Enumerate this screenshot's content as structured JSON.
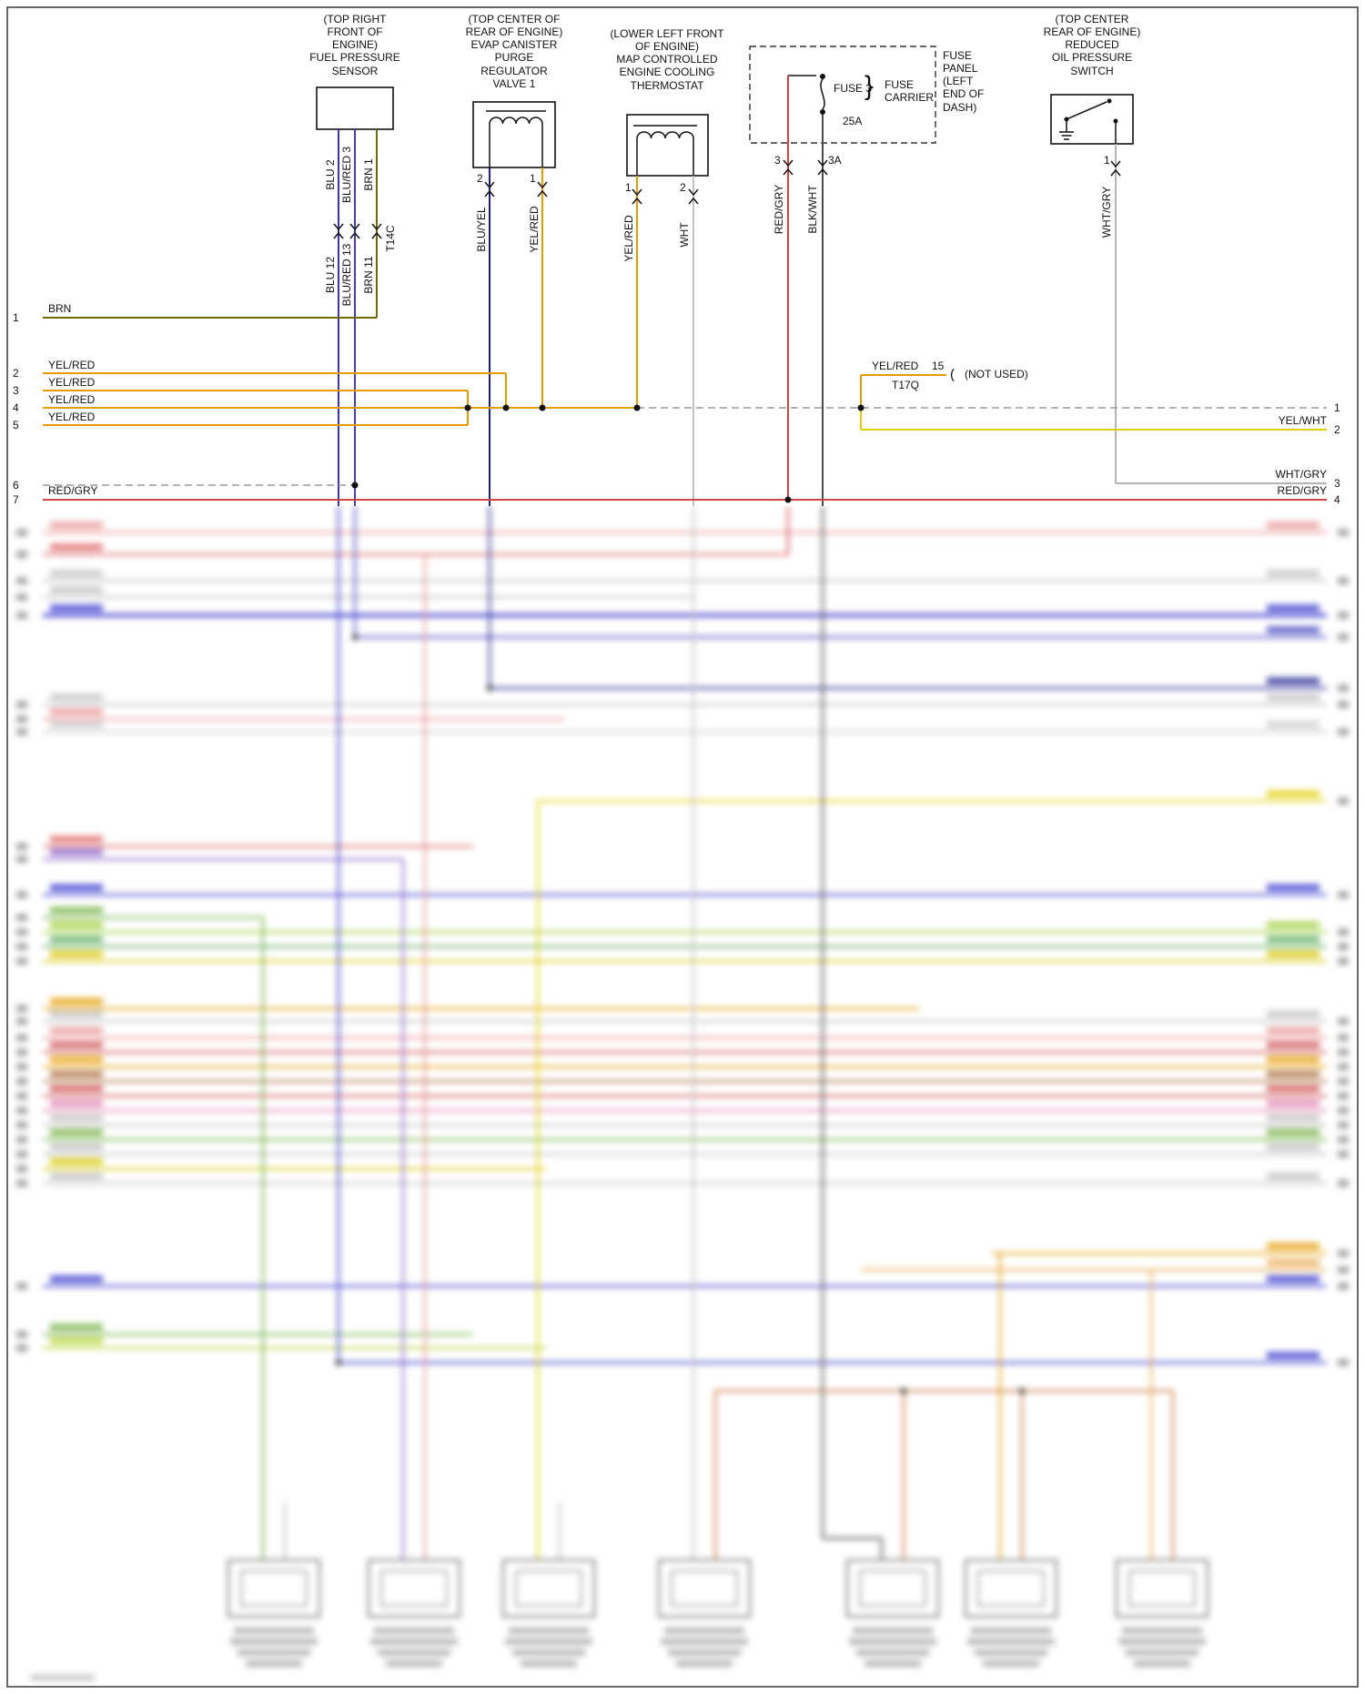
{
  "palette": {
    "blu": "#3434cc",
    "blu_red": "#4040c0",
    "brn": "#6f6a00",
    "yel_red": "#e39b00",
    "blu_yel": "#1d1d90",
    "wht": "#c0c0c0",
    "red_gry": "#d04343",
    "blk_wht": "#4a4a4a",
    "wht_gry": "#b3b3b3",
    "yel_wht": "#e3cf00"
  },
  "components": {
    "fuel_pressure_sensor": {
      "label": "(TOP RIGHT\nFRONT OF\nENGINE)\nFUEL PRESSURE\nSENSOR",
      "wire_labels_top": [
        "BLU 2",
        "BLU/RED 3",
        "BRN 1"
      ],
      "wire_labels_bottom": [
        "BLU 12",
        "BLU/RED 13",
        "BRN 11"
      ],
      "connector": "T14C"
    },
    "evap_valve": {
      "label": "(TOP CENTER OF\nREAR OF ENGINE)\nEVAP CANISTER\nPURGE\nREGULATOR\nVALVE 1",
      "pins": [
        "2",
        "1"
      ],
      "wires": [
        "BLU/YEL",
        "YEL/RED"
      ]
    },
    "thermostat": {
      "label": "(LOWER LEFT FRONT\nOF ENGINE)\nMAP CONTROLLED\nENGINE COOLING\nTHERMOSTAT",
      "pins": [
        "1",
        "2"
      ],
      "wires": [
        "YEL/RED",
        "WHT"
      ]
    },
    "fuse_panel": {
      "fuse_label": "FUSE 3",
      "rating": "25A",
      "brace": "}",
      "carrier_label": "FUSE\nCARRIER",
      "panel_label": "FUSE\nPANEL\n(LEFT\nEND OF\nDASH)",
      "pins": [
        "3",
        "3A"
      ],
      "wires": [
        "RED/GRY",
        "BLK/WHT"
      ]
    },
    "oil_pressure_switch": {
      "label": "(TOP CENTER\nREAR OF ENGINE)\nREDUCED\nOIL PRESSURE\nSWITCH",
      "pins": [
        "1"
      ],
      "wires": [
        "WHT/GRY"
      ]
    }
  },
  "left_rows": [
    {
      "num": "1",
      "label": "BRN"
    },
    {
      "num": "2",
      "label": "YEL/RED"
    },
    {
      "num": "3",
      "label": "YEL/RED"
    },
    {
      "num": "4",
      "label": "YEL/RED"
    },
    {
      "num": "5",
      "label": "YEL/RED"
    },
    {
      "num": "6",
      "label": ""
    },
    {
      "num": "7",
      "label": "RED/GRY"
    }
  ],
  "right_rows": [
    {
      "num": "1",
      "label": ""
    },
    {
      "num": "2",
      "label": "YEL/WHT"
    },
    {
      "num": "3",
      "label": "WHT/GRY"
    },
    {
      "num": "4",
      "label": "RED/GRY"
    }
  ],
  "not_used_branch": {
    "wire": "YEL/RED",
    "pin": "15",
    "connector": "T17Q",
    "bracket": "(",
    "note": "(NOT USED)"
  }
}
